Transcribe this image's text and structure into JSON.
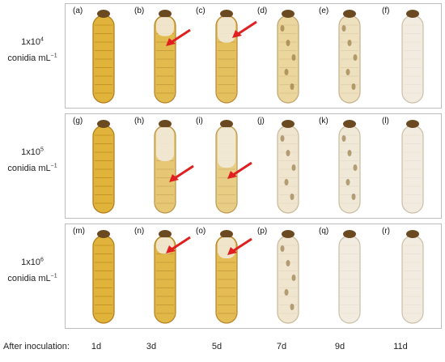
{
  "rows": [
    {
      "label_line1": "1x10",
      "label_exp": "4",
      "label_line2": "conidia mL",
      "label_unit_exp": "−1"
    },
    {
      "label_line1": "1x10",
      "label_exp": "5",
      "label_line2": "conidia mL",
      "label_unit_exp": "−1"
    },
    {
      "label_line1": "1x10",
      "label_exp": "6",
      "label_line2": "conidia mL",
      "label_unit_exp": "−1"
    }
  ],
  "panels": [
    [
      "(a)",
      "(b)",
      "(c)",
      "(d)",
      "(e)",
      "(f)"
    ],
    [
      "(g)",
      "(h)",
      "(i)",
      "(j)",
      "(k)",
      "(l)"
    ],
    [
      "(m)",
      "(n)",
      "(o)",
      "(p)",
      "(q)",
      "(r)"
    ]
  ],
  "xaxis": {
    "title": "After inoculation:",
    "ticks": [
      "1d",
      "3d",
      "5d",
      "7d",
      "9d",
      "11d"
    ]
  },
  "colors": {
    "healthy_body": "#e0b43a",
    "healthy_dark": "#b07a16",
    "mycelium": "#f2ece0",
    "arrow": "#e02020",
    "border": "#bdbdbd"
  }
}
